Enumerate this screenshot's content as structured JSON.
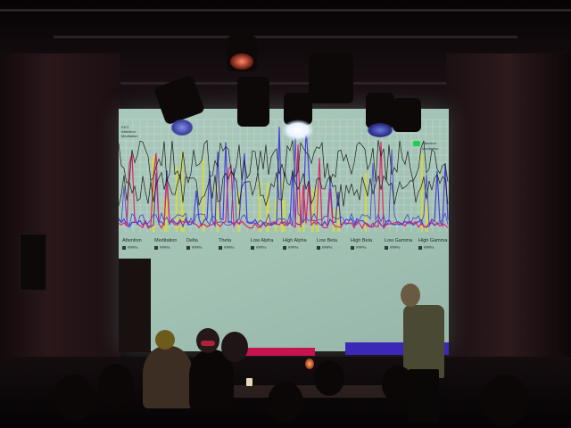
{
  "scene": {
    "screen_colors": {
      "background": "#a6c6b8",
      "lines_magenta": "#e0246a",
      "lines_blue": "#4a3fd6",
      "lines_yellow": "#d9d93a",
      "lines_black": "#1c1c1c",
      "bar_magenta": "#c4134f",
      "bar_blue": "#3b28b8"
    }
  },
  "screen": {
    "legend_topleft": [
      "ЕЕG",
      "Attention",
      "Meditation"
    ],
    "legend_topright": [
      "Attention",
      "Meditation"
    ],
    "labels": [
      {
        "name": "Attention",
        "value": "###%"
      },
      {
        "name": "Meditation",
        "value": "###%"
      },
      {
        "name": "Delta",
        "value": "###%"
      },
      {
        "name": "Theta",
        "value": "###%"
      },
      {
        "name": "Low Alpha",
        "value": "###%"
      },
      {
        "name": "High Alpha",
        "value": "###%"
      },
      {
        "name": "Low Beta",
        "value": "###%"
      },
      {
        "name": "High Beta",
        "value": "###%"
      },
      {
        "name": "Low Gamma",
        "value": "###%"
      },
      {
        "name": "High Gamma",
        "value": "###%"
      }
    ]
  }
}
